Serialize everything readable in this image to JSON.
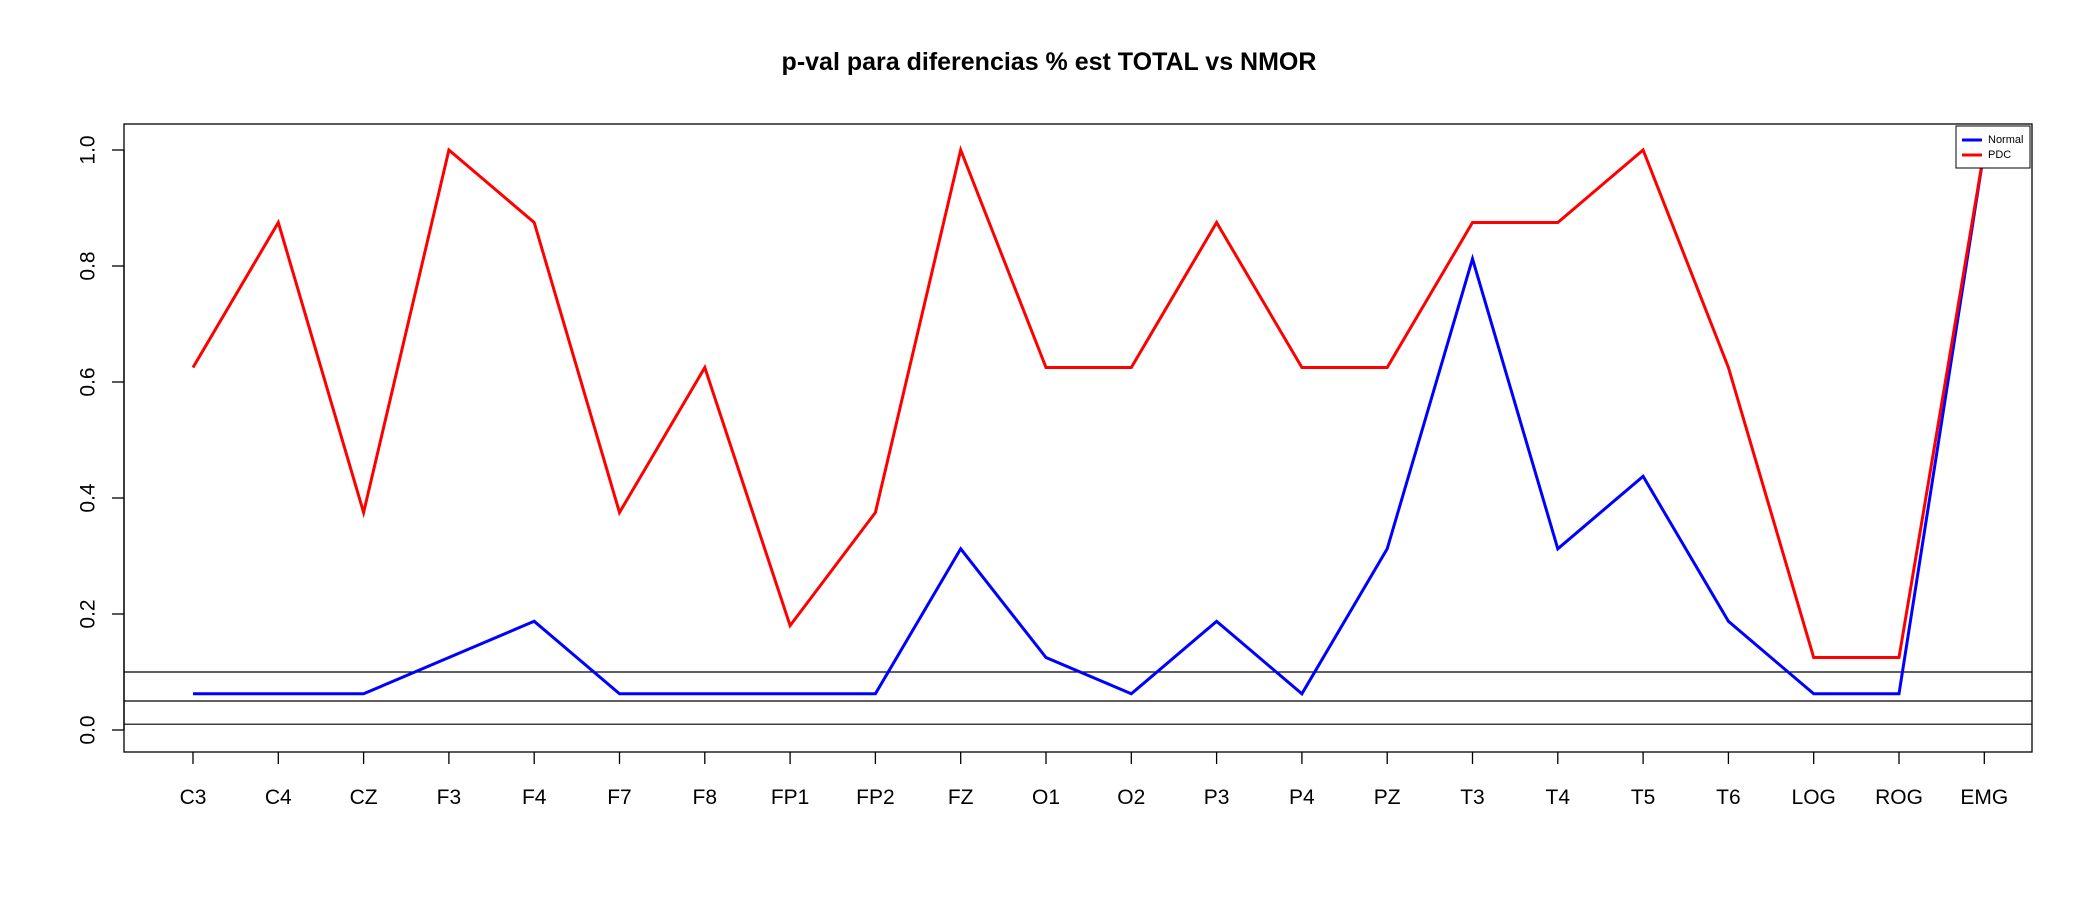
{
  "chart_data": {
    "type": "line",
    "title": "p-val para diferencias % est TOTAL vs NMOR",
    "xlabel": "",
    "ylabel": "",
    "categories": [
      "C3",
      "C4",
      "CZ",
      "F3",
      "F4",
      "F7",
      "F8",
      "FP1",
      "FP2",
      "FZ",
      "O1",
      "O2",
      "P3",
      "P4",
      "PZ",
      "T3",
      "T4",
      "T5",
      "T6",
      "LOG",
      "ROG",
      "EMG"
    ],
    "y_ticks": [
      "0.0",
      "0.2",
      "0.4",
      "0.6",
      "0.8",
      "1.0"
    ],
    "ylim": [
      -0.04,
      1.04
    ],
    "series": [
      {
        "name": "Normal",
        "color": "#0000ff",
        "values": [
          0.0625,
          0.0625,
          0.0625,
          0.125,
          0.1875,
          0.0625,
          0.0625,
          0.0625,
          0.0625,
          0.3125,
          0.125,
          0.0625,
          0.1875,
          0.0625,
          0.3125,
          0.8125,
          0.3125,
          0.4375,
          0.1875,
          0.0625,
          0.0625,
          1.0
        ]
      },
      {
        "name": "PDC",
        "color": "#ff0000",
        "values": [
          0.625,
          0.875,
          0.375,
          1.0,
          0.875,
          0.375,
          0.625,
          0.18,
          0.375,
          1.0,
          0.625,
          0.625,
          0.875,
          0.625,
          0.625,
          0.875,
          0.875,
          1.0,
          0.625,
          0.125,
          0.125,
          1.0
        ]
      }
    ],
    "reference_lines": [
      0.1,
      0.05,
      0.01
    ],
    "grid": false,
    "legend_position": "top-right"
  }
}
